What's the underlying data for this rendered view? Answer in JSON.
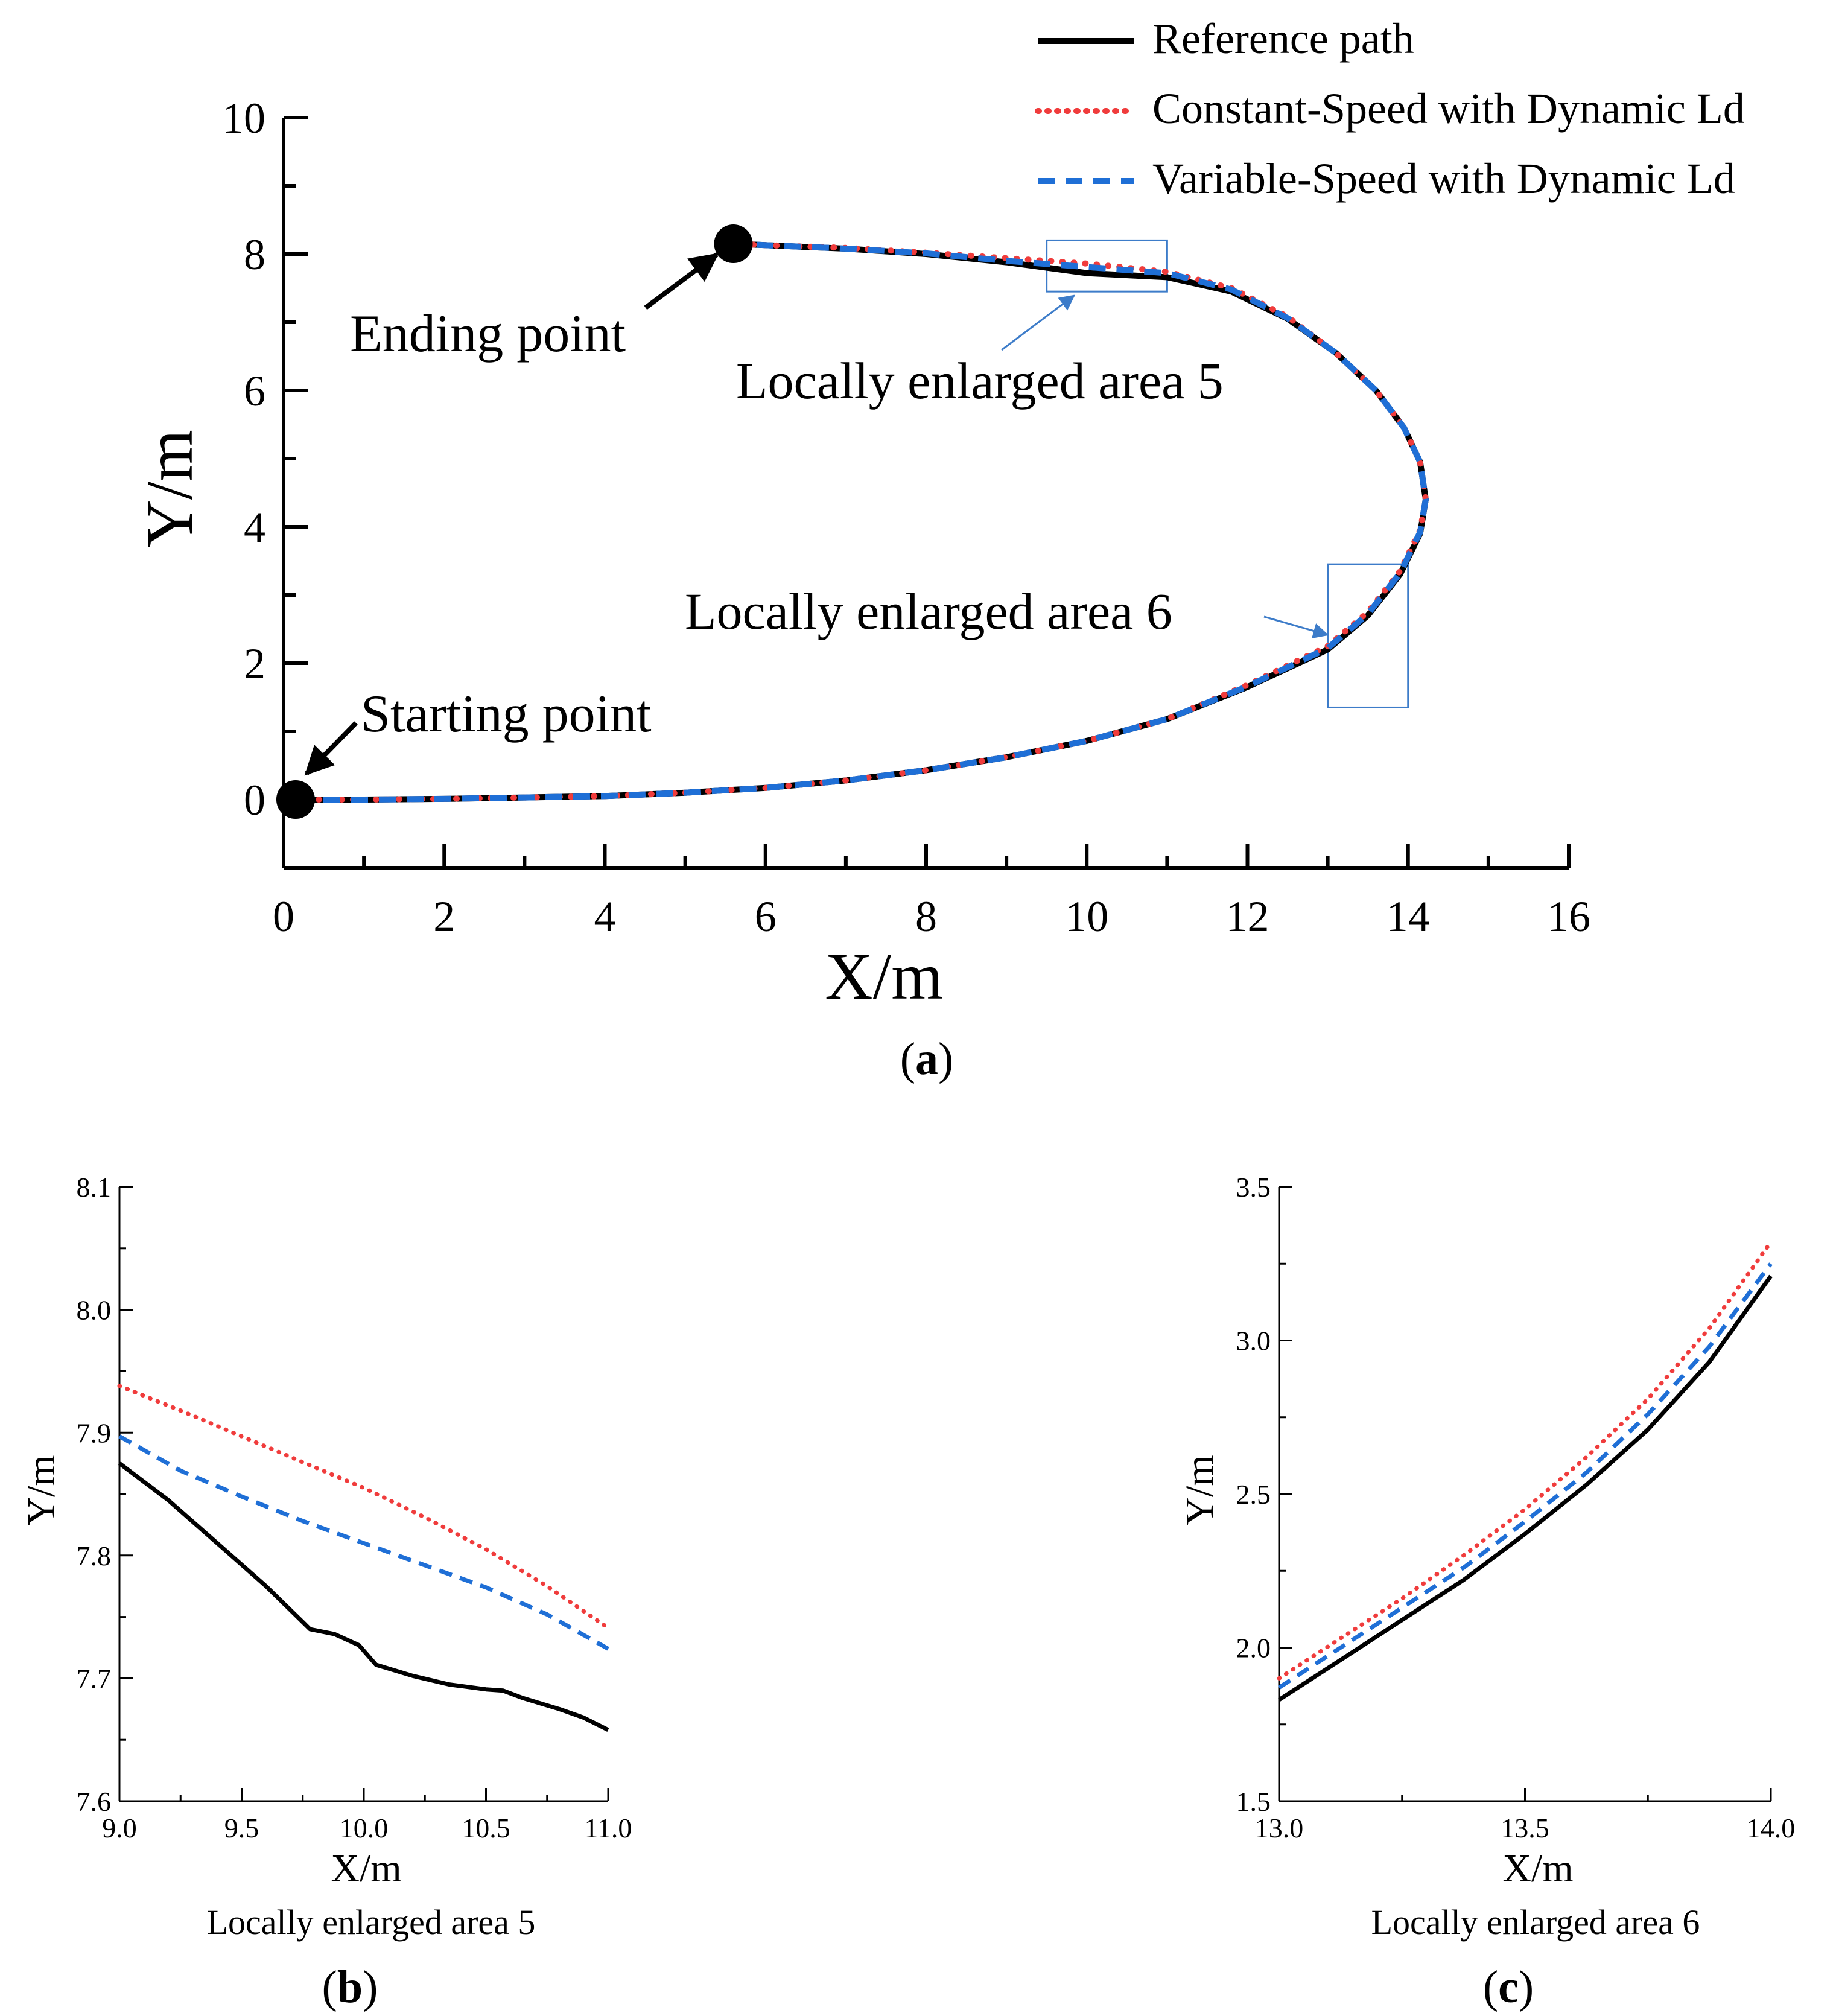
{
  "colors": {
    "reference": "#000000",
    "constant": "#f03c3c",
    "variable": "#1f6fd6",
    "box": "#3d7cc9"
  },
  "legend": [
    {
      "key": "reference",
      "label": "Reference path"
    },
    {
      "key": "constant",
      "label": "Constant-Speed with Dynamic Ld"
    },
    {
      "key": "variable",
      "label": "Variable-Speed with Dynamic Ld"
    }
  ],
  "panels": {
    "a": {
      "caption_letter": "a",
      "annotation_start": "Starting point",
      "annotation_end": "Ending point",
      "zoom_label_5": "Locally enlarged area 5",
      "zoom_label_6": "Locally enlarged area 6"
    },
    "b": {
      "caption_letter": "b",
      "subtitle": "Locally enlarged area 5"
    },
    "c": {
      "caption_letter": "c",
      "subtitle": "Locally enlarged area 6"
    }
  },
  "chart_data": [
    {
      "id": "a",
      "type": "line",
      "xlabel": "X/m",
      "ylabel": "Y/m",
      "xlim": [
        0,
        16
      ],
      "ylim": [
        -1,
        10
      ],
      "xticks": [
        "0",
        "2",
        "4",
        "6",
        "8",
        "10",
        "12",
        "14",
        "16"
      ],
      "yticks": [
        "0",
        "2",
        "4",
        "6",
        "8",
        "10"
      ],
      "start_point": [
        0.15,
        0.0
      ],
      "end_point": [
        5.6,
        8.15
      ],
      "zoom_boxes": [
        {
          "name": "Locally enlarged area 5",
          "x": [
            9.5,
            11.0
          ],
          "y": [
            7.45,
            8.2
          ]
        },
        {
          "name": "Locally enlarged area 6",
          "x": [
            13.0,
            14.0
          ],
          "y": [
            1.35,
            3.45
          ]
        }
      ],
      "series": [
        {
          "name": "Reference path",
          "points": [
            [
              0.15,
              0.0
            ],
            [
              1,
              0.0
            ],
            [
              2,
              0.01
            ],
            [
              3,
              0.03
            ],
            [
              4,
              0.05
            ],
            [
              5,
              0.1
            ],
            [
              6,
              0.17
            ],
            [
              7,
              0.28
            ],
            [
              8,
              0.43
            ],
            [
              9,
              0.62
            ],
            [
              10,
              0.86
            ],
            [
              11,
              1.18
            ],
            [
              12,
              1.65
            ],
            [
              13,
              2.2
            ],
            [
              13.5,
              2.7
            ],
            [
              13.9,
              3.3
            ],
            [
              14.15,
              3.9
            ],
            [
              14.22,
              4.4
            ],
            [
              14.15,
              4.95
            ],
            [
              13.95,
              5.45
            ],
            [
              13.6,
              6.0
            ],
            [
              13.1,
              6.55
            ],
            [
              12.5,
              7.05
            ],
            [
              11.8,
              7.45
            ],
            [
              11.0,
              7.66
            ],
            [
              10.0,
              7.72
            ],
            [
              9.0,
              7.88
            ],
            [
              8.0,
              8.0
            ],
            [
              7.0,
              8.08
            ],
            [
              6.0,
              8.13
            ],
            [
              5.6,
              8.15
            ]
          ]
        },
        {
          "name": "Constant-Speed with Dynamic Ld",
          "points": [
            [
              0.15,
              0.0
            ],
            [
              1,
              0.0
            ],
            [
              2,
              0.01
            ],
            [
              3,
              0.03
            ],
            [
              4,
              0.05
            ],
            [
              5,
              0.1
            ],
            [
              6,
              0.17
            ],
            [
              7,
              0.28
            ],
            [
              8,
              0.43
            ],
            [
              9,
              0.62
            ],
            [
              10,
              0.86
            ],
            [
              11,
              1.18
            ],
            [
              12,
              1.68
            ],
            [
              13,
              2.25
            ],
            [
              13.5,
              2.75
            ],
            [
              13.9,
              3.35
            ],
            [
              14.15,
              3.95
            ],
            [
              14.22,
              4.4
            ],
            [
              14.15,
              4.95
            ],
            [
              13.95,
              5.45
            ],
            [
              13.6,
              6.0
            ],
            [
              13.1,
              6.55
            ],
            [
              12.5,
              7.08
            ],
            [
              11.8,
              7.5
            ],
            [
              11.0,
              7.74
            ],
            [
              10.0,
              7.86
            ],
            [
              9.0,
              7.94
            ],
            [
              8.0,
              8.02
            ],
            [
              7.0,
              8.09
            ],
            [
              6.0,
              8.13
            ],
            [
              5.6,
              8.15
            ]
          ]
        },
        {
          "name": "Variable-Speed with Dynamic Ld",
          "points": [
            [
              0.15,
              0.0
            ],
            [
              1,
              0.0
            ],
            [
              2,
              0.01
            ],
            [
              3,
              0.03
            ],
            [
              4,
              0.05
            ],
            [
              5,
              0.1
            ],
            [
              6,
              0.17
            ],
            [
              7,
              0.28
            ],
            [
              8,
              0.43
            ],
            [
              9,
              0.62
            ],
            [
              10,
              0.86
            ],
            [
              11,
              1.18
            ],
            [
              12,
              1.66
            ],
            [
              13,
              2.22
            ],
            [
              13.5,
              2.72
            ],
            [
              13.9,
              3.32
            ],
            [
              14.15,
              3.92
            ],
            [
              14.22,
              4.4
            ],
            [
              14.15,
              4.95
            ],
            [
              13.95,
              5.45
            ],
            [
              13.6,
              6.0
            ],
            [
              13.1,
              6.55
            ],
            [
              12.5,
              7.06
            ],
            [
              11.8,
              7.48
            ],
            [
              11.0,
              7.72
            ],
            [
              10.0,
              7.81
            ],
            [
              9.0,
              7.9
            ],
            [
              8.0,
              8.01
            ],
            [
              7.0,
              8.08
            ],
            [
              6.0,
              8.13
            ],
            [
              5.6,
              8.15
            ]
          ]
        }
      ]
    },
    {
      "id": "b",
      "type": "line",
      "xlabel": "X/m",
      "ylabel": "Y/m",
      "xlim": [
        9.0,
        11.0
      ],
      "ylim": [
        7.6,
        8.1
      ],
      "xticks": [
        "9.0",
        "9.5",
        "10.0",
        "10.5",
        "11.0"
      ],
      "yticks": [
        "7.6",
        "7.7",
        "7.8",
        "7.9",
        "8.0",
        "8.1"
      ],
      "series": [
        {
          "name": "Reference path",
          "points": [
            [
              9.0,
              7.875
            ],
            [
              9.2,
              7.845
            ],
            [
              9.4,
              7.81
            ],
            [
              9.6,
              7.775
            ],
            [
              9.78,
              7.74
            ],
            [
              9.88,
              7.736
            ],
            [
              9.98,
              7.727
            ],
            [
              10.05,
              7.711
            ],
            [
              10.2,
              7.702
            ],
            [
              10.35,
              7.695
            ],
            [
              10.5,
              7.691
            ],
            [
              10.57,
              7.69
            ],
            [
              10.65,
              7.684
            ],
            [
              10.8,
              7.675
            ],
            [
              10.9,
              7.668
            ],
            [
              11.0,
              7.658
            ]
          ]
        },
        {
          "name": "Constant-Speed with Dynamic Ld",
          "points": [
            [
              9.0,
              7.938
            ],
            [
              9.25,
              7.918
            ],
            [
              9.5,
              7.897
            ],
            [
              9.75,
              7.876
            ],
            [
              10.0,
              7.855
            ],
            [
              10.25,
              7.831
            ],
            [
              10.5,
              7.805
            ],
            [
              10.75,
              7.775
            ],
            [
              11.0,
              7.741
            ]
          ]
        },
        {
          "name": "Variable-Speed with Dynamic Ld",
          "points": [
            [
              9.0,
              7.897
            ],
            [
              9.25,
              7.869
            ],
            [
              9.5,
              7.848
            ],
            [
              9.75,
              7.828
            ],
            [
              10.0,
              7.81
            ],
            [
              10.25,
              7.792
            ],
            [
              10.5,
              7.774
            ],
            [
              10.75,
              7.752
            ],
            [
              11.0,
              7.724
            ]
          ]
        }
      ]
    },
    {
      "id": "c",
      "type": "line",
      "xlabel": "X/m",
      "ylabel": "Y/m",
      "xlim": [
        13.0,
        14.0
      ],
      "ylim": [
        1.5,
        3.5
      ],
      "xticks": [
        "13.0",
        "13.5",
        "14.0"
      ],
      "yticks": [
        "1.5",
        "2.0",
        "2.5",
        "3.0",
        "3.5"
      ],
      "series": [
        {
          "name": "Reference path",
          "points": [
            [
              13.0,
              1.83
            ],
            [
              13.125,
              1.96
            ],
            [
              13.25,
              2.09
            ],
            [
              13.375,
              2.22
            ],
            [
              13.5,
              2.37
            ],
            [
              13.625,
              2.53
            ],
            [
              13.75,
              2.71
            ],
            [
              13.875,
              2.93
            ],
            [
              14.0,
              3.21
            ]
          ]
        },
        {
          "name": "Constant-Speed with Dynamic Ld",
          "points": [
            [
              13.0,
              1.9
            ],
            [
              13.125,
              2.03
            ],
            [
              13.25,
              2.16
            ],
            [
              13.375,
              2.3
            ],
            [
              13.5,
              2.45
            ],
            [
              13.625,
              2.62
            ],
            [
              13.75,
              2.81
            ],
            [
              13.875,
              3.04
            ],
            [
              14.0,
              3.32
            ]
          ]
        },
        {
          "name": "Variable-Speed with Dynamic Ld",
          "points": [
            [
              13.0,
              1.87
            ],
            [
              13.125,
              2.0
            ],
            [
              13.25,
              2.13
            ],
            [
              13.375,
              2.26
            ],
            [
              13.5,
              2.41
            ],
            [
              13.625,
              2.57
            ],
            [
              13.75,
              2.76
            ],
            [
              13.875,
              2.98
            ],
            [
              14.0,
              3.25
            ]
          ]
        }
      ]
    }
  ]
}
